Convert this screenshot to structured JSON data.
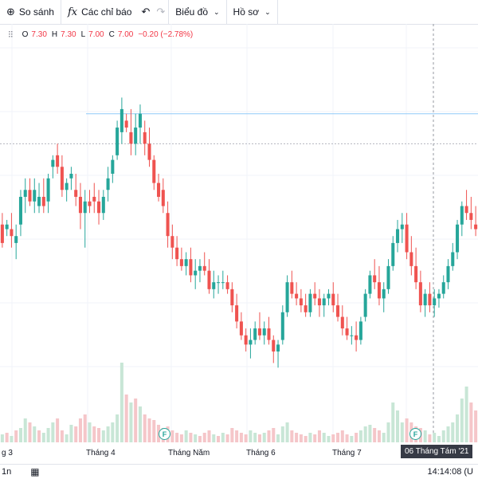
{
  "toolbar": {
    "compare_label": "So sánh",
    "indicators_label": "Các chỉ báo",
    "chart_type_label": "Biểu đồ",
    "profile_label": "Hồ sơ"
  },
  "legend": {
    "o_key": "O",
    "o_val": "7.30",
    "h_key": "H",
    "h_val": "7.30",
    "l_key": "L",
    "l_val": "7.00",
    "c_key": "C",
    "c_val": "7.00",
    "change": "−0.20 (−2.78%)"
  },
  "tooltip": "06 Tháng Tám '21",
  "bottom": {
    "interval": "1n",
    "time": "14:14:08 (U"
  },
  "event_marker": "F",
  "colors": {
    "up": "#26a69a",
    "down": "#ef5350",
    "up_vol": "#c8e6d6",
    "down_vol": "#f5c6c9"
  },
  "chart_data": {
    "type": "candlestick",
    "x_tick_labels": [
      "g 3",
      "Tháng 4",
      "Tháng Năm",
      "Tháng 6",
      "Tháng 7"
    ],
    "ylim": [
      6.35,
      7.8
    ],
    "horizontal_line": 7.48,
    "reference_line": 7.35,
    "candles": [
      [
        7.0,
        7.05,
        6.9,
        6.92
      ],
      [
        6.98,
        7.02,
        6.95,
        7.0
      ],
      [
        6.98,
        7.05,
        6.9,
        6.95
      ],
      [
        6.92,
        7.0,
        6.85,
        6.95
      ],
      [
        7.0,
        7.15,
        6.95,
        7.12
      ],
      [
        7.12,
        7.2,
        7.05,
        7.15
      ],
      [
        7.15,
        7.2,
        7.08,
        7.1
      ],
      [
        7.1,
        7.2,
        7.05,
        7.15
      ],
      [
        7.08,
        7.18,
        7.05,
        7.12
      ],
      [
        7.12,
        7.2,
        7.05,
        7.08
      ],
      [
        7.1,
        7.22,
        7.05,
        7.2
      ],
      [
        7.25,
        7.3,
        7.2,
        7.28
      ],
      [
        7.3,
        7.35,
        7.22,
        7.25
      ],
      [
        7.25,
        7.3,
        7.12,
        7.15
      ],
      [
        7.15,
        7.2,
        7.1,
        7.18
      ],
      [
        7.2,
        7.25,
        7.15,
        7.22
      ],
      [
        7.15,
        7.22,
        7.08,
        7.12
      ],
      [
        7.12,
        7.18,
        6.98,
        7.05
      ],
      [
        7.05,
        7.15,
        6.9,
        7.1
      ],
      [
        7.1,
        7.15,
        7.05,
        7.08
      ],
      [
        7.12,
        7.18,
        7.05,
        7.1
      ],
      [
        7.1,
        7.15,
        7.0,
        7.05
      ],
      [
        7.05,
        7.15,
        7.02,
        7.12
      ],
      [
        7.15,
        7.25,
        7.1,
        7.2
      ],
      [
        7.22,
        7.3,
        7.18,
        7.28
      ],
      [
        7.3,
        7.45,
        7.28,
        7.42
      ],
      [
        7.4,
        7.55,
        7.35,
        7.5
      ],
      [
        7.45,
        7.48,
        7.4,
        7.42
      ],
      [
        7.4,
        7.5,
        7.3,
        7.35
      ],
      [
        7.35,
        7.48,
        7.3,
        7.42
      ],
      [
        7.42,
        7.52,
        7.35,
        7.48
      ],
      [
        7.4,
        7.45,
        7.3,
        7.35
      ],
      [
        7.35,
        7.42,
        7.25,
        7.28
      ],
      [
        7.28,
        7.3,
        7.15,
        7.18
      ],
      [
        7.18,
        7.22,
        7.1,
        7.12
      ],
      [
        7.15,
        7.2,
        7.05,
        7.08
      ],
      [
        7.05,
        7.1,
        6.9,
        6.95
      ],
      [
        6.95,
        7.0,
        6.85,
        6.9
      ],
      [
        6.9,
        6.95,
        6.82,
        6.85
      ],
      [
        6.85,
        6.9,
        6.8,
        6.82
      ],
      [
        6.82,
        6.88,
        6.78,
        6.85
      ],
      [
        6.85,
        6.9,
        6.75,
        6.78
      ],
      [
        6.78,
        6.85,
        6.72,
        6.8
      ],
      [
        6.8,
        6.85,
        6.75,
        6.82
      ],
      [
        6.82,
        6.88,
        6.78,
        6.8
      ],
      [
        6.8,
        6.85,
        6.7,
        6.72
      ],
      [
        6.72,
        6.8,
        6.68,
        6.75
      ],
      [
        6.75,
        6.78,
        6.7,
        6.75
      ],
      [
        6.75,
        6.8,
        6.72,
        6.75
      ],
      [
        6.75,
        6.78,
        6.7,
        6.72
      ],
      [
        6.72,
        6.75,
        6.62,
        6.65
      ],
      [
        6.65,
        6.7,
        6.55,
        6.58
      ],
      [
        6.58,
        6.62,
        6.5,
        6.52
      ],
      [
        6.52,
        6.55,
        6.45,
        6.48
      ],
      [
        6.48,
        6.55,
        6.42,
        6.5
      ],
      [
        6.5,
        6.58,
        6.48,
        6.55
      ],
      [
        6.55,
        6.62,
        6.5,
        6.52
      ],
      [
        6.52,
        6.58,
        6.48,
        6.55
      ],
      [
        6.55,
        6.6,
        6.48,
        6.5
      ],
      [
        6.5,
        6.52,
        6.4,
        6.45
      ],
      [
        6.45,
        6.5,
        6.38,
        6.48
      ],
      [
        6.5,
        6.65,
        6.48,
        6.62
      ],
      [
        6.62,
        6.78,
        6.6,
        6.75
      ],
      [
        6.75,
        6.8,
        6.68,
        6.7
      ],
      [
        6.7,
        6.75,
        6.65,
        6.68
      ],
      [
        6.68,
        6.72,
        6.62,
        6.65
      ],
      [
        6.65,
        6.7,
        6.6,
        6.62
      ],
      [
        6.62,
        6.72,
        6.6,
        6.7
      ],
      [
        6.7,
        6.75,
        6.65,
        6.68
      ],
      [
        6.68,
        6.72,
        6.6,
        6.65
      ],
      [
        6.65,
        6.7,
        6.6,
        6.68
      ],
      [
        6.68,
        6.72,
        6.65,
        6.7
      ],
      [
        6.7,
        6.75,
        6.62,
        6.65
      ],
      [
        6.65,
        6.7,
        6.58,
        6.6
      ],
      [
        6.6,
        6.65,
        6.52,
        6.55
      ],
      [
        6.55,
        6.6,
        6.5,
        6.52
      ],
      [
        6.52,
        6.56,
        6.48,
        6.52
      ],
      [
        6.52,
        6.58,
        6.45,
        6.5
      ],
      [
        6.5,
        6.6,
        6.48,
        6.58
      ],
      [
        6.6,
        6.72,
        6.58,
        6.7
      ],
      [
        6.7,
        6.8,
        6.68,
        6.78
      ],
      [
        6.78,
        6.85,
        6.72,
        6.75
      ],
      [
        6.75,
        6.82,
        6.65,
        6.68
      ],
      [
        6.68,
        6.75,
        6.62,
        6.72
      ],
      [
        6.72,
        6.85,
        6.7,
        6.82
      ],
      [
        6.82,
        6.95,
        6.8,
        6.92
      ],
      [
        6.92,
        7.02,
        6.88,
        6.98
      ],
      [
        6.98,
        7.05,
        6.92,
        7.0
      ],
      [
        7.0,
        7.05,
        6.85,
        6.88
      ],
      [
        6.88,
        6.95,
        6.78,
        6.82
      ],
      [
        6.82,
        6.9,
        6.72,
        6.75
      ],
      [
        6.75,
        6.8,
        6.62,
        6.65
      ],
      [
        6.65,
        6.72,
        6.6,
        6.7
      ],
      [
        6.7,
        6.75,
        6.62,
        6.65
      ],
      [
        6.65,
        6.72,
        6.6,
        6.68
      ],
      [
        6.68,
        6.72,
        6.64,
        6.7
      ],
      [
        6.7,
        6.78,
        6.68,
        6.75
      ],
      [
        6.75,
        6.85,
        6.72,
        6.82
      ],
      [
        6.82,
        6.92,
        6.8,
        6.88
      ],
      [
        6.88,
        7.02,
        6.85,
        7.0
      ],
      [
        7.0,
        7.1,
        6.95,
        7.08
      ],
      [
        7.08,
        7.15,
        7.02,
        7.05
      ],
      [
        7.05,
        7.12,
        6.98,
        7.02
      ],
      [
        7.0,
        7.08,
        6.95,
        6.98
      ]
    ],
    "volumes": [
      [
        0.1,
        "u"
      ],
      [
        0.12,
        "d"
      ],
      [
        0.08,
        "u"
      ],
      [
        0.15,
        "d"
      ],
      [
        0.18,
        "u"
      ],
      [
        0.3,
        "u"
      ],
      [
        0.25,
        "d"
      ],
      [
        0.2,
        "u"
      ],
      [
        0.15,
        "d"
      ],
      [
        0.12,
        "u"
      ],
      [
        0.18,
        "u"
      ],
      [
        0.25,
        "u"
      ],
      [
        0.3,
        "d"
      ],
      [
        0.15,
        "d"
      ],
      [
        0.1,
        "u"
      ],
      [
        0.22,
        "u"
      ],
      [
        0.2,
        "d"
      ],
      [
        0.3,
        "d"
      ],
      [
        0.35,
        "d"
      ],
      [
        0.25,
        "u"
      ],
      [
        0.2,
        "d"
      ],
      [
        0.18,
        "d"
      ],
      [
        0.15,
        "u"
      ],
      [
        0.2,
        "u"
      ],
      [
        0.25,
        "u"
      ],
      [
        0.35,
        "u"
      ],
      [
        1.0,
        "u"
      ],
      [
        0.6,
        "d"
      ],
      [
        0.5,
        "u"
      ],
      [
        0.55,
        "d"
      ],
      [
        0.45,
        "u"
      ],
      [
        0.35,
        "d"
      ],
      [
        0.3,
        "d"
      ],
      [
        0.28,
        "d"
      ],
      [
        0.22,
        "d"
      ],
      [
        0.18,
        "d"
      ],
      [
        0.2,
        "d"
      ],
      [
        0.15,
        "d"
      ],
      [
        0.12,
        "d"
      ],
      [
        0.1,
        "d"
      ],
      [
        0.15,
        "u"
      ],
      [
        0.12,
        "d"
      ],
      [
        0.1,
        "u"
      ],
      [
        0.08,
        "d"
      ],
      [
        0.12,
        "d"
      ],
      [
        0.15,
        "d"
      ],
      [
        0.1,
        "u"
      ],
      [
        0.08,
        "d"
      ],
      [
        0.12,
        "u"
      ],
      [
        0.1,
        "d"
      ],
      [
        0.18,
        "d"
      ],
      [
        0.15,
        "d"
      ],
      [
        0.12,
        "d"
      ],
      [
        0.1,
        "d"
      ],
      [
        0.15,
        "u"
      ],
      [
        0.12,
        "u"
      ],
      [
        0.1,
        "d"
      ],
      [
        0.12,
        "u"
      ],
      [
        0.15,
        "d"
      ],
      [
        0.18,
        "d"
      ],
      [
        0.1,
        "u"
      ],
      [
        0.2,
        "u"
      ],
      [
        0.25,
        "u"
      ],
      [
        0.15,
        "d"
      ],
      [
        0.12,
        "d"
      ],
      [
        0.1,
        "d"
      ],
      [
        0.08,
        "d"
      ],
      [
        0.12,
        "u"
      ],
      [
        0.1,
        "d"
      ],
      [
        0.15,
        "d"
      ],
      [
        0.12,
        "u"
      ],
      [
        0.08,
        "u"
      ],
      [
        0.1,
        "d"
      ],
      [
        0.12,
        "d"
      ],
      [
        0.15,
        "d"
      ],
      [
        0.1,
        "d"
      ],
      [
        0.08,
        "u"
      ],
      [
        0.12,
        "d"
      ],
      [
        0.15,
        "u"
      ],
      [
        0.2,
        "u"
      ],
      [
        0.22,
        "u"
      ],
      [
        0.18,
        "d"
      ],
      [
        0.15,
        "d"
      ],
      [
        0.12,
        "u"
      ],
      [
        0.25,
        "u"
      ],
      [
        0.5,
        "u"
      ],
      [
        0.4,
        "u"
      ],
      [
        0.25,
        "u"
      ],
      [
        0.3,
        "d"
      ],
      [
        0.25,
        "d"
      ],
      [
        0.2,
        "d"
      ],
      [
        0.18,
        "d"
      ],
      [
        0.15,
        "u"
      ],
      [
        0.1,
        "d"
      ],
      [
        0.12,
        "u"
      ],
      [
        0.08,
        "u"
      ],
      [
        0.15,
        "u"
      ],
      [
        0.2,
        "u"
      ],
      [
        0.25,
        "u"
      ],
      [
        0.35,
        "u"
      ],
      [
        0.55,
        "u"
      ],
      [
        0.7,
        "u"
      ],
      [
        0.5,
        "d"
      ],
      [
        0.4,
        "d"
      ]
    ]
  }
}
